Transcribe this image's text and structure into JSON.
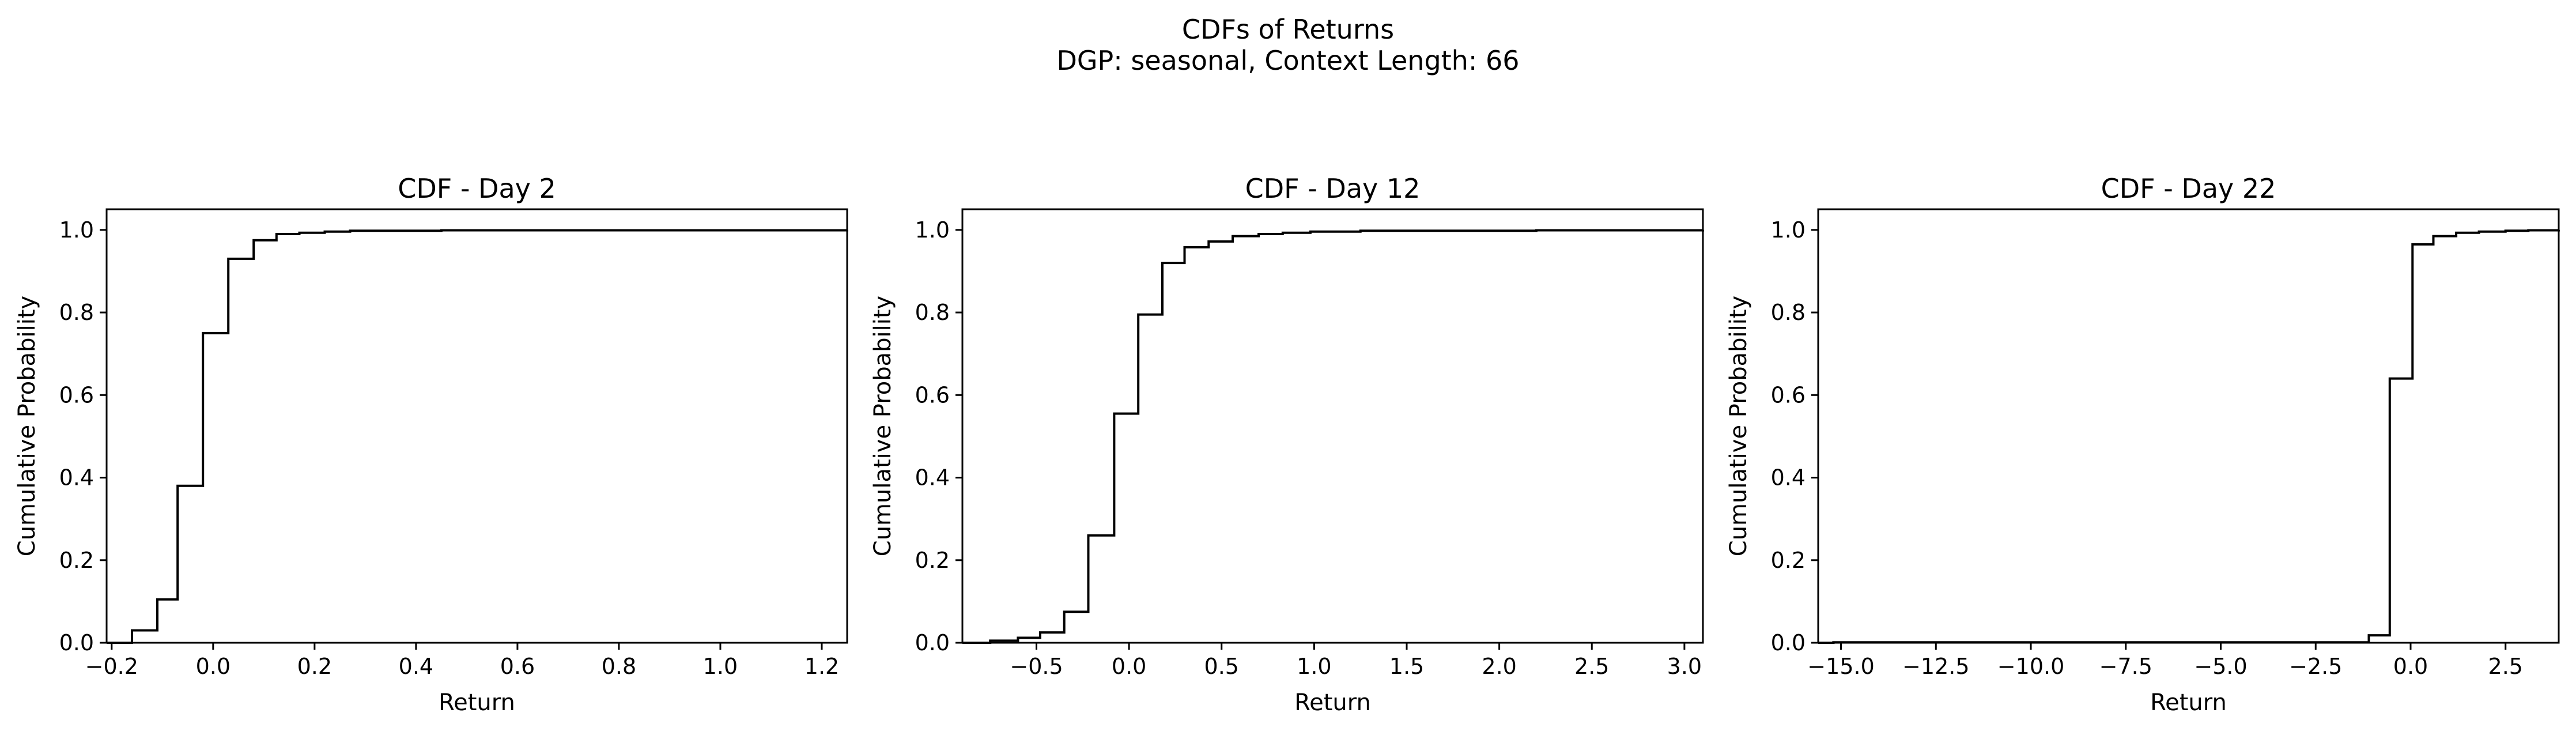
{
  "figure": {
    "title_line1": "CDFs of Returns",
    "title_line2": "DGP: seasonal, Context Length: 66"
  },
  "chart_data": [
    {
      "type": "line",
      "step": true,
      "title": "CDF - Day 2",
      "xlabel": "Return",
      "ylabel": "Cumulative Probability",
      "xlim": [
        -0.21,
        1.25
      ],
      "ylim": [
        0.0,
        1.05
      ],
      "xticks": [
        -0.2,
        0.0,
        0.2,
        0.4,
        0.6,
        0.8,
        1.0,
        1.2
      ],
      "xtick_labels": [
        "−0.2",
        "0.0",
        "0.2",
        "0.4",
        "0.6",
        "0.8",
        "1.0",
        "1.2"
      ],
      "yticks": [
        0.0,
        0.2,
        0.4,
        0.6,
        0.8,
        1.0
      ],
      "ytick_labels": [
        "0.0",
        "0.2",
        "0.4",
        "0.6",
        "0.8",
        "1.0"
      ],
      "grid": false,
      "color": "#000000",
      "series": [
        {
          "x": [
            -0.21,
            -0.16,
            -0.11,
            -0.07,
            -0.02,
            0.03,
            0.08,
            0.125,
            0.17,
            0.22,
            0.27,
            0.45,
            1.25
          ],
          "y": [
            0.0,
            0.03,
            0.105,
            0.38,
            0.75,
            0.93,
            0.975,
            0.99,
            0.993,
            0.996,
            0.998,
            0.999,
            1.0
          ]
        }
      ]
    },
    {
      "type": "line",
      "step": true,
      "title": "CDF - Day 12",
      "xlabel": "Return",
      "ylabel": "Cumulative Probability",
      "xlim": [
        -0.9,
        3.1
      ],
      "ylim": [
        0.0,
        1.05
      ],
      "xticks": [
        -0.5,
        0.0,
        0.5,
        1.0,
        1.5,
        2.0,
        2.5,
        3.0
      ],
      "xtick_labels": [
        "−0.5",
        "0.0",
        "0.5",
        "1.0",
        "1.5",
        "2.0",
        "2.5",
        "3.0"
      ],
      "yticks": [
        0.0,
        0.2,
        0.4,
        0.6,
        0.8,
        1.0
      ],
      "ytick_labels": [
        "0.0",
        "0.2",
        "0.4",
        "0.6",
        "0.8",
        "1.0"
      ],
      "grid": false,
      "color": "#000000",
      "series": [
        {
          "x": [
            -0.9,
            -0.75,
            -0.6,
            -0.48,
            -0.35,
            -0.22,
            -0.08,
            0.05,
            0.18,
            0.3,
            0.43,
            0.56,
            0.7,
            0.83,
            0.98,
            1.25,
            2.2,
            3.1
          ],
          "y": [
            0.0,
            0.005,
            0.012,
            0.025,
            0.075,
            0.26,
            0.555,
            0.795,
            0.92,
            0.958,
            0.972,
            0.985,
            0.99,
            0.993,
            0.996,
            0.998,
            0.999,
            1.0
          ]
        }
      ]
    },
    {
      "type": "line",
      "step": true,
      "title": "CDF - Day 22",
      "xlabel": "Return",
      "ylabel": "Cumulative Probability",
      "xlim": [
        -15.6,
        3.9
      ],
      "ylim": [
        0.0,
        1.05
      ],
      "xticks": [
        -15.0,
        -12.5,
        -10.0,
        -7.5,
        -5.0,
        -2.5,
        0.0,
        2.5
      ],
      "xtick_labels": [
        "−15.0",
        "−12.5",
        "−10.0",
        "−7.5",
        "−5.0",
        "−2.5",
        "0.0",
        "2.5"
      ],
      "yticks": [
        0.0,
        0.2,
        0.4,
        0.6,
        0.8,
        1.0
      ],
      "ytick_labels": [
        "0.0",
        "0.2",
        "0.4",
        "0.6",
        "0.8",
        "1.0"
      ],
      "grid": false,
      "color": "#000000",
      "series": [
        {
          "x": [
            -15.6,
            -15.2,
            -1.1,
            -0.55,
            0.05,
            0.6,
            1.2,
            1.8,
            2.5,
            3.1,
            3.9
          ],
          "y": [
            0.0,
            0.001,
            0.018,
            0.64,
            0.965,
            0.985,
            0.993,
            0.996,
            0.998,
            0.999,
            1.0
          ]
        }
      ]
    }
  ]
}
